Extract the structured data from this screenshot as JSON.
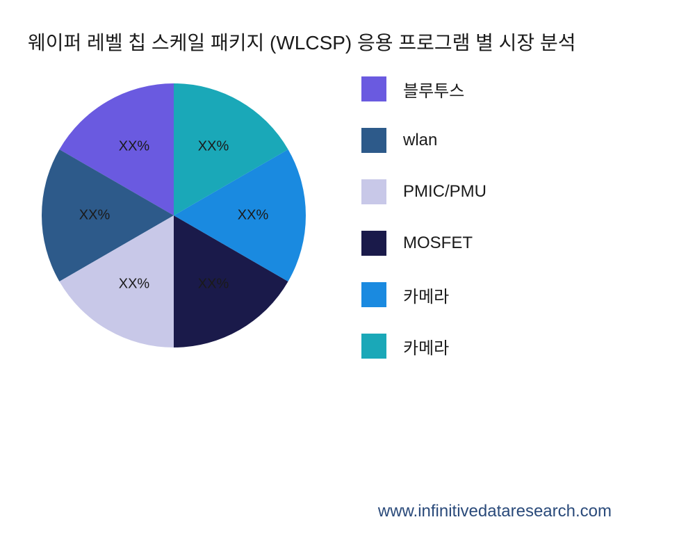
{
  "chart": {
    "type": "pie",
    "title": "웨이퍼 레벨 칩 스케일 패키지 (WLCSP) 응용 프로그램 별 시장 분석",
    "title_fontsize": 28,
    "title_color": "#1a1a1a",
    "background_color": "#ffffff",
    "slices": [
      {
        "label": "블루투스",
        "value": 16.67,
        "color": "#6a5ae0",
        "display_label": "XX%"
      },
      {
        "label": "wlan",
        "value": 16.67,
        "color": "#2d5a8a",
        "display_label": "XX%"
      },
      {
        "label": "PMIC/PMU",
        "value": 16.67,
        "color": "#c8c8e8",
        "display_label": "XX%"
      },
      {
        "label": "MOSFET",
        "value": 16.67,
        "color": "#1a1a4a",
        "display_label": "XX%"
      },
      {
        "label": "카메라",
        "value": 16.67,
        "color": "#1a8ae0",
        "display_label": "XX%"
      },
      {
        "label": "카메라",
        "value": 16.67,
        "color": "#1aa8b8",
        "display_label": "XX%"
      }
    ],
    "slice_label_fontsize": 20,
    "slice_label_color": "#1a1a1a",
    "legend_fontsize": 24,
    "legend_color": "#1a1a1a",
    "start_angle_deg": 90
  },
  "footer": {
    "url": "www.infinitivedataresearch.com",
    "color": "#2a4a7a",
    "fontsize": 24
  }
}
